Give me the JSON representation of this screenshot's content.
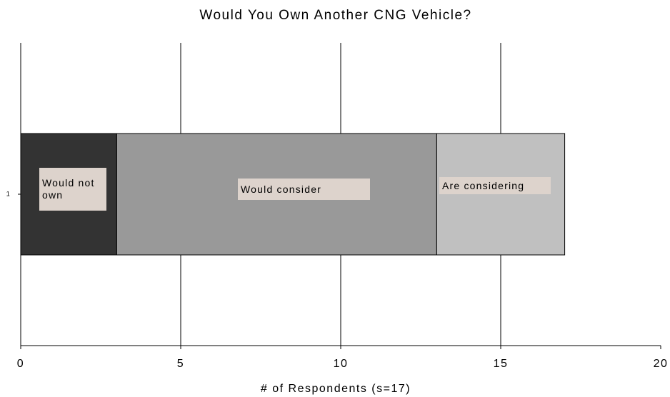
{
  "chart_data": {
    "type": "stacked_barh",
    "title": "Would You Own Another CNG Vehicle?",
    "x_label": "# of Respondents (s=17)",
    "categories": [
      "1"
    ],
    "series": [
      {
        "name": "Would not own",
        "color": "#333333",
        "values": [
          3
        ]
      },
      {
        "name": "Would consider",
        "color": "#999999",
        "values": [
          10
        ]
      },
      {
        "name": "Are considering",
        "color": "#c0c0c0",
        "values": [
          4
        ]
      }
    ],
    "xlim": [
      0,
      20
    ],
    "xticks": [
      0,
      5,
      10,
      15,
      20
    ],
    "grid": true
  }
}
